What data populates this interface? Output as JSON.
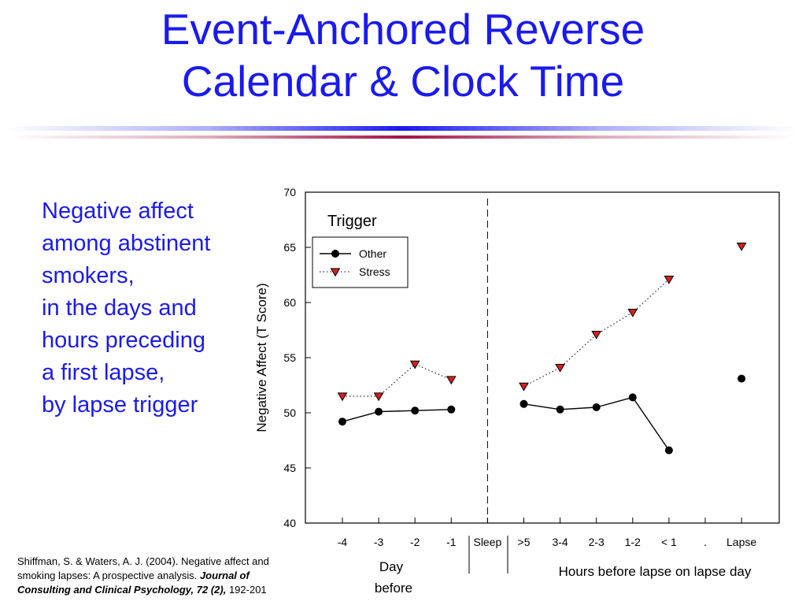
{
  "slide": {
    "title_line1": "Event-Anchored Reverse",
    "title_line2": "Calendar & Clock Time",
    "description_lines": [
      "Negative affect",
      "among abstinent",
      "smokers,",
      "in the days and",
      "hours preceding",
      "a first lapse,",
      "by lapse trigger"
    ],
    "citation": {
      "plain1": "Shiffman, S. & Waters, A. J. (2004). Negative affect and smoking lapses: A prospective analysis. ",
      "italic": "Journal of Consulting and Clinical Psychology, 72 (2),",
      "plain2": " 192-201"
    },
    "colors": {
      "title": "#1a1aee",
      "stress_marker": "#d42020",
      "rule_primary": "#1a1aee",
      "rule_secondary": "#a01446"
    }
  },
  "chart_data": {
    "type": "line",
    "legend_title": "Trigger",
    "legend_position": "top-left",
    "ylabel": "Negative Affect (T Score)",
    "ylim": [
      40,
      70
    ],
    "yticks": [
      40,
      45,
      50,
      55,
      60,
      65,
      70
    ],
    "categories": [
      "-4",
      "-3",
      "-2",
      "-1",
      "Sleep",
      ">5",
      "3-4",
      "2-3",
      "1-2",
      "< 1",
      ".",
      "Lapse"
    ],
    "xgroup_labels": {
      "days": [
        "Day",
        "before"
      ],
      "hours": "Hours before lapse on lapse day"
    },
    "divider_category": "Sleep",
    "series": [
      {
        "name": "Other",
        "marker": "circle",
        "line": "solid",
        "segments": [
          [
            [
              "-4",
              49.2
            ],
            [
              "-3",
              50.1
            ],
            [
              "-2",
              50.2
            ],
            [
              "-1",
              50.3
            ]
          ],
          [
            [
              ">5",
              50.8
            ],
            [
              "3-4",
              50.3
            ],
            [
              "2-3",
              50.5
            ],
            [
              "1-2",
              51.4
            ],
            [
              "< 1",
              46.6
            ]
          ],
          [
            [
              "Lapse",
              53.1
            ]
          ]
        ]
      },
      {
        "name": "Stress",
        "marker": "triangle-down",
        "line": "dotted",
        "segments": [
          [
            [
              "-4",
              51.5
            ],
            [
              "-3",
              51.5
            ],
            [
              "-2",
              54.4
            ],
            [
              "-1",
              53.0
            ]
          ],
          [
            [
              ">5",
              52.4
            ],
            [
              "3-4",
              54.1
            ],
            [
              "2-3",
              57.1
            ],
            [
              "1-2",
              59.1
            ],
            [
              "< 1",
              62.1
            ]
          ],
          [
            [
              "Lapse",
              65.1
            ]
          ]
        ]
      }
    ]
  }
}
